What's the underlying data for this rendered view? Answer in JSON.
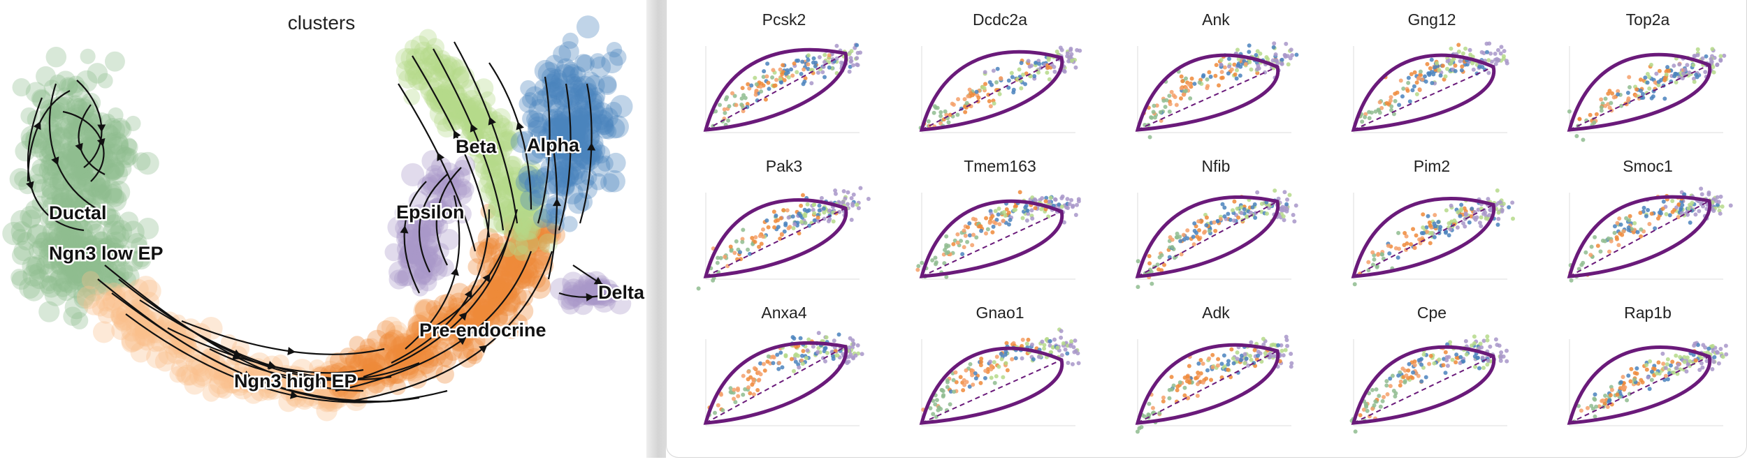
{
  "chart_data": [
    {
      "type": "scatter",
      "title": "clusters",
      "cluster_labels": [
        "Ductal",
        "Ngn3 low EP",
        "Ngn3 high EP",
        "Pre-endocrine",
        "Beta",
        "Alpha",
        "Epsilon",
        "Delta"
      ],
      "cluster_colors": {
        "Ductal": "#8fbc8f",
        "Ngn3 low EP": "#8fbc8f",
        "Ngn3 high EP": "#f9c08d",
        "Pre-endocrine": "#ee8a3a",
        "Beta": "#b5d98a",
        "Alpha": "#4a83bd",
        "Epsilon": "#a897c9",
        "Delta": "#a897c9"
      },
      "overlay": "velocity streamlines"
    },
    {
      "type": "scatter",
      "grid": "3x5",
      "fit_color": "#6a1a7a",
      "point_colors": [
        "#8fbc8f",
        "#f4a06a",
        "#ee8a3a",
        "#4a83bd",
        "#b5d98a",
        "#a897c9"
      ],
      "panels": [
        {
          "title": "Pcsk2"
        },
        {
          "title": "Dcdc2a"
        },
        {
          "title": "Ank"
        },
        {
          "title": "Gng12"
        },
        {
          "title": "Top2a"
        },
        {
          "title": "Pak3"
        },
        {
          "title": "Tmem163"
        },
        {
          "title": "Nfib"
        },
        {
          "title": "Pim2"
        },
        {
          "title": "Smoc1"
        },
        {
          "title": "Anxa4"
        },
        {
          "title": "Gnao1"
        },
        {
          "title": "Adk"
        },
        {
          "title": "Cpe"
        },
        {
          "title": "Rap1b"
        }
      ]
    }
  ]
}
